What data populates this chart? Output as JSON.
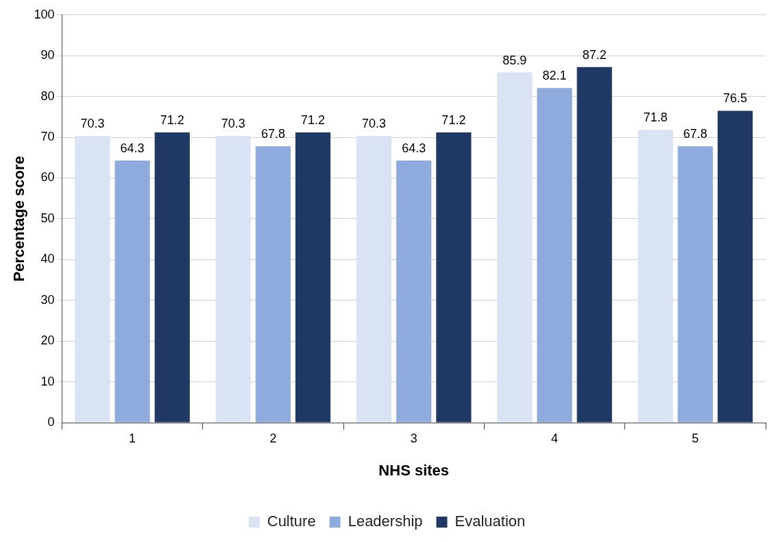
{
  "chart_data": {
    "type": "bar",
    "xlabel": "NHS sites",
    "ylabel": "Percentage score",
    "categories": [
      "1",
      "2",
      "3",
      "4",
      "5"
    ],
    "series": [
      {
        "name": "Culture",
        "color": "#dae3f3",
        "values": [
          70.3,
          70.3,
          70.3,
          85.9,
          71.8
        ]
      },
      {
        "name": "Leadership",
        "color": "#8faadc",
        "values": [
          64.3,
          67.8,
          64.3,
          82.1,
          67.8
        ]
      },
      {
        "name": "Evaluation",
        "color": "#203864",
        "values": [
          71.2,
          71.2,
          71.2,
          87.2,
          76.5
        ]
      }
    ],
    "ylim": [
      0,
      100
    ],
    "yticks": [
      0,
      10,
      20,
      30,
      40,
      50,
      60,
      70,
      80,
      90,
      100
    ],
    "grid": "y",
    "legend": "bottom",
    "data_labels": true
  }
}
